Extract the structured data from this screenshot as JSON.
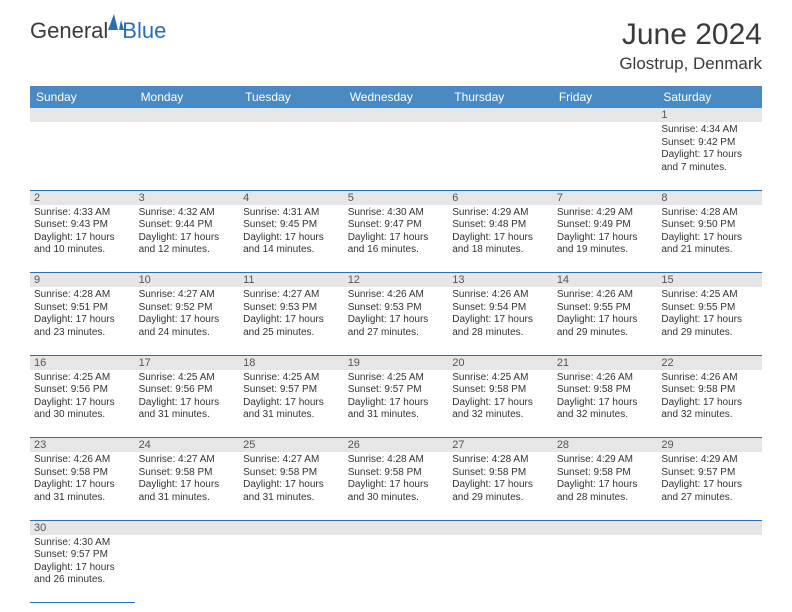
{
  "logo": {
    "text1": "General",
    "text2": "Blue"
  },
  "title": "June 2024",
  "location": "Glostrup, Denmark",
  "colors": {
    "header_bg": "#4a8ac2",
    "header_text": "#ffffff",
    "daynum_bg": "#e6e6e6",
    "border": "#2b6fb0",
    "text": "#333333",
    "title": "#3a3a3a"
  },
  "day_headers": [
    "Sunday",
    "Monday",
    "Tuesday",
    "Wednesday",
    "Thursday",
    "Friday",
    "Saturday"
  ],
  "weeks": [
    [
      null,
      null,
      null,
      null,
      null,
      null,
      {
        "num": "1",
        "sunrise": "Sunrise: 4:34 AM",
        "sunset": "Sunset: 9:42 PM",
        "daylight": "Daylight: 17 hours and 7 minutes."
      }
    ],
    [
      {
        "num": "2",
        "sunrise": "Sunrise: 4:33 AM",
        "sunset": "Sunset: 9:43 PM",
        "daylight": "Daylight: 17 hours and 10 minutes."
      },
      {
        "num": "3",
        "sunrise": "Sunrise: 4:32 AM",
        "sunset": "Sunset: 9:44 PM",
        "daylight": "Daylight: 17 hours and 12 minutes."
      },
      {
        "num": "4",
        "sunrise": "Sunrise: 4:31 AM",
        "sunset": "Sunset: 9:45 PM",
        "daylight": "Daylight: 17 hours and 14 minutes."
      },
      {
        "num": "5",
        "sunrise": "Sunrise: 4:30 AM",
        "sunset": "Sunset: 9:47 PM",
        "daylight": "Daylight: 17 hours and 16 minutes."
      },
      {
        "num": "6",
        "sunrise": "Sunrise: 4:29 AM",
        "sunset": "Sunset: 9:48 PM",
        "daylight": "Daylight: 17 hours and 18 minutes."
      },
      {
        "num": "7",
        "sunrise": "Sunrise: 4:29 AM",
        "sunset": "Sunset: 9:49 PM",
        "daylight": "Daylight: 17 hours and 19 minutes."
      },
      {
        "num": "8",
        "sunrise": "Sunrise: 4:28 AM",
        "sunset": "Sunset: 9:50 PM",
        "daylight": "Daylight: 17 hours and 21 minutes."
      }
    ],
    [
      {
        "num": "9",
        "sunrise": "Sunrise: 4:28 AM",
        "sunset": "Sunset: 9:51 PM",
        "daylight": "Daylight: 17 hours and 23 minutes."
      },
      {
        "num": "10",
        "sunrise": "Sunrise: 4:27 AM",
        "sunset": "Sunset: 9:52 PM",
        "daylight": "Daylight: 17 hours and 24 minutes."
      },
      {
        "num": "11",
        "sunrise": "Sunrise: 4:27 AM",
        "sunset": "Sunset: 9:53 PM",
        "daylight": "Daylight: 17 hours and 25 minutes."
      },
      {
        "num": "12",
        "sunrise": "Sunrise: 4:26 AM",
        "sunset": "Sunset: 9:53 PM",
        "daylight": "Daylight: 17 hours and 27 minutes."
      },
      {
        "num": "13",
        "sunrise": "Sunrise: 4:26 AM",
        "sunset": "Sunset: 9:54 PM",
        "daylight": "Daylight: 17 hours and 28 minutes."
      },
      {
        "num": "14",
        "sunrise": "Sunrise: 4:26 AM",
        "sunset": "Sunset: 9:55 PM",
        "daylight": "Daylight: 17 hours and 29 minutes."
      },
      {
        "num": "15",
        "sunrise": "Sunrise: 4:25 AM",
        "sunset": "Sunset: 9:55 PM",
        "daylight": "Daylight: 17 hours and 29 minutes."
      }
    ],
    [
      {
        "num": "16",
        "sunrise": "Sunrise: 4:25 AM",
        "sunset": "Sunset: 9:56 PM",
        "daylight": "Daylight: 17 hours and 30 minutes."
      },
      {
        "num": "17",
        "sunrise": "Sunrise: 4:25 AM",
        "sunset": "Sunset: 9:56 PM",
        "daylight": "Daylight: 17 hours and 31 minutes."
      },
      {
        "num": "18",
        "sunrise": "Sunrise: 4:25 AM",
        "sunset": "Sunset: 9:57 PM",
        "daylight": "Daylight: 17 hours and 31 minutes."
      },
      {
        "num": "19",
        "sunrise": "Sunrise: 4:25 AM",
        "sunset": "Sunset: 9:57 PM",
        "daylight": "Daylight: 17 hours and 31 minutes."
      },
      {
        "num": "20",
        "sunrise": "Sunrise: 4:25 AM",
        "sunset": "Sunset: 9:58 PM",
        "daylight": "Daylight: 17 hours and 32 minutes."
      },
      {
        "num": "21",
        "sunrise": "Sunrise: 4:26 AM",
        "sunset": "Sunset: 9:58 PM",
        "daylight": "Daylight: 17 hours and 32 minutes."
      },
      {
        "num": "22",
        "sunrise": "Sunrise: 4:26 AM",
        "sunset": "Sunset: 9:58 PM",
        "daylight": "Daylight: 17 hours and 32 minutes."
      }
    ],
    [
      {
        "num": "23",
        "sunrise": "Sunrise: 4:26 AM",
        "sunset": "Sunset: 9:58 PM",
        "daylight": "Daylight: 17 hours and 31 minutes."
      },
      {
        "num": "24",
        "sunrise": "Sunrise: 4:27 AM",
        "sunset": "Sunset: 9:58 PM",
        "daylight": "Daylight: 17 hours and 31 minutes."
      },
      {
        "num": "25",
        "sunrise": "Sunrise: 4:27 AM",
        "sunset": "Sunset: 9:58 PM",
        "daylight": "Daylight: 17 hours and 31 minutes."
      },
      {
        "num": "26",
        "sunrise": "Sunrise: 4:28 AM",
        "sunset": "Sunset: 9:58 PM",
        "daylight": "Daylight: 17 hours and 30 minutes."
      },
      {
        "num": "27",
        "sunrise": "Sunrise: 4:28 AM",
        "sunset": "Sunset: 9:58 PM",
        "daylight": "Daylight: 17 hours and 29 minutes."
      },
      {
        "num": "28",
        "sunrise": "Sunrise: 4:29 AM",
        "sunset": "Sunset: 9:58 PM",
        "daylight": "Daylight: 17 hours and 28 minutes."
      },
      {
        "num": "29",
        "sunrise": "Sunrise: 4:29 AM",
        "sunset": "Sunset: 9:57 PM",
        "daylight": "Daylight: 17 hours and 27 minutes."
      }
    ],
    [
      {
        "num": "30",
        "sunrise": "Sunrise: 4:30 AM",
        "sunset": "Sunset: 9:57 PM",
        "daylight": "Daylight: 17 hours and 26 minutes."
      },
      null,
      null,
      null,
      null,
      null,
      null
    ]
  ]
}
